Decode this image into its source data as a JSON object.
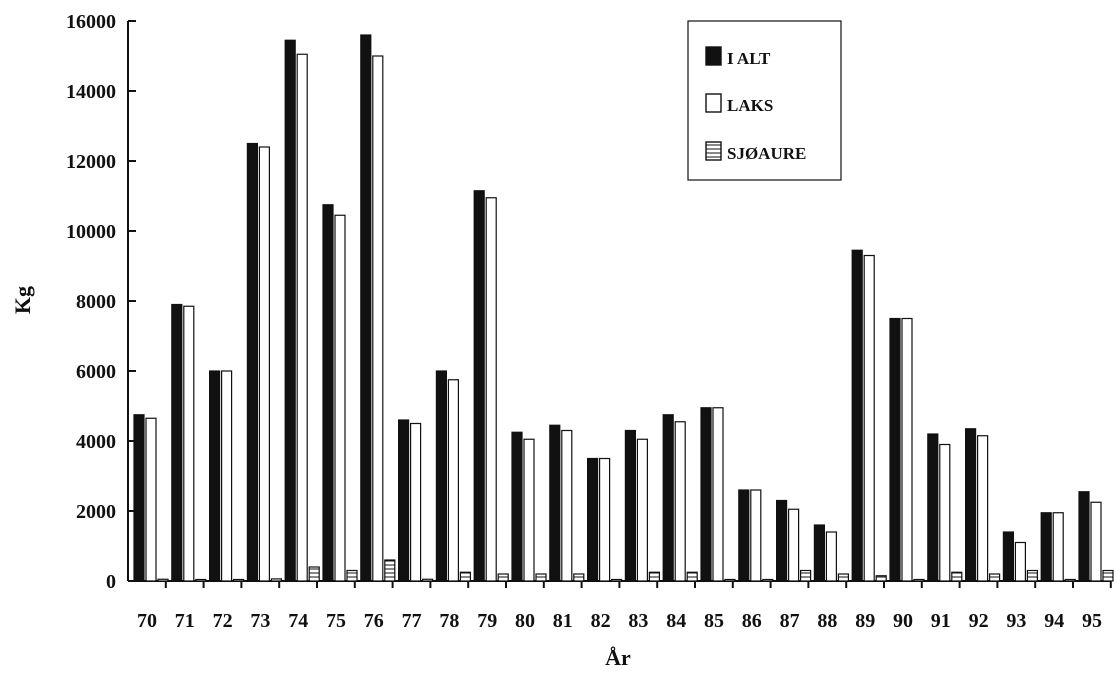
{
  "chart_data": {
    "type": "bar",
    "title": "",
    "xlabel": "År",
    "ylabel": "Kg",
    "ylim": [
      0,
      16000
    ],
    "yticks": [
      0,
      2000,
      4000,
      6000,
      8000,
      10000,
      12000,
      14000,
      16000
    ],
    "grid": false,
    "legend_position": "top-right",
    "categories": [
      "70",
      "71",
      "72",
      "73",
      "74",
      "75",
      "76",
      "77",
      "78",
      "79",
      "80",
      "81",
      "82",
      "83",
      "84",
      "85",
      "86",
      "87",
      "88",
      "89",
      "90",
      "91",
      "92",
      "93",
      "94",
      "95"
    ],
    "series": [
      {
        "name": "I ALT",
        "color": "#111111",
        "pattern": "solid",
        "values": [
          4750,
          7900,
          6000,
          12500,
          15450,
          10750,
          15600,
          4600,
          6000,
          11150,
          4250,
          4450,
          3500,
          4300,
          4750,
          4950,
          2600,
          2300,
          1600,
          9450,
          7500,
          4200,
          4350,
          1400,
          1950,
          2550
        ]
      },
      {
        "name": "LAKS",
        "color": "#ffffff",
        "pattern": "hollow",
        "values": [
          4650,
          7850,
          6000,
          12400,
          15050,
          10450,
          15000,
          4500,
          5750,
          10950,
          4050,
          4300,
          3500,
          4050,
          4550,
          4950,
          2600,
          2050,
          1400,
          9300,
          7500,
          3900,
          4150,
          1100,
          1950,
          2250
        ]
      },
      {
        "name": "SJØAURE",
        "color": "#ffffff",
        "pattern": "horizontal-lines",
        "values": [
          50,
          20,
          20,
          60,
          400,
          300,
          600,
          50,
          250,
          200,
          200,
          200,
          20,
          250,
          250,
          20,
          20,
          300,
          200,
          150,
          20,
          250,
          200,
          300,
          20,
          300
        ]
      }
    ]
  }
}
